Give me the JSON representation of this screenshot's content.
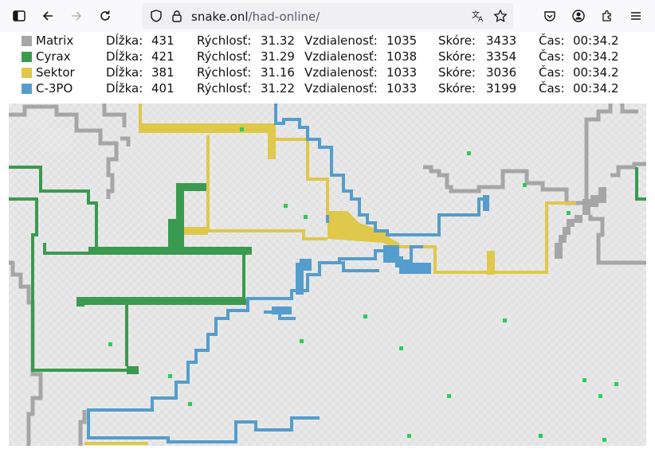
{
  "browser": {
    "url_host": "snake.onl",
    "url_path": "/had-online/"
  },
  "labels": {
    "length": "Dĺžka:",
    "speed": "Rýchlosť:",
    "distance": "Vzdialenosť:",
    "score": "Skóre:",
    "time": "Čas:"
  },
  "players": [
    {
      "name": "Matrix",
      "color": "#a6a6a6",
      "length": "431",
      "speed": "31.32",
      "distance": "1035",
      "score": "3433",
      "time": "00:34.2"
    },
    {
      "name": "Cyrax",
      "color": "#3a9a50",
      "length": "421",
      "speed": "31.29",
      "distance": "1038",
      "score": "3354",
      "time": "00:34.2"
    },
    {
      "name": "Sektor",
      "color": "#dfc84a",
      "length": "381",
      "speed": "31.16",
      "distance": "1033",
      "score": "3036",
      "time": "00:34.2"
    },
    {
      "name": "C-3PO",
      "color": "#559dcc",
      "length": "401",
      "speed": "31.22",
      "distance": "1033",
      "score": "3199",
      "time": "00:34.2"
    }
  ],
  "food_color": "#2ecc55"
}
